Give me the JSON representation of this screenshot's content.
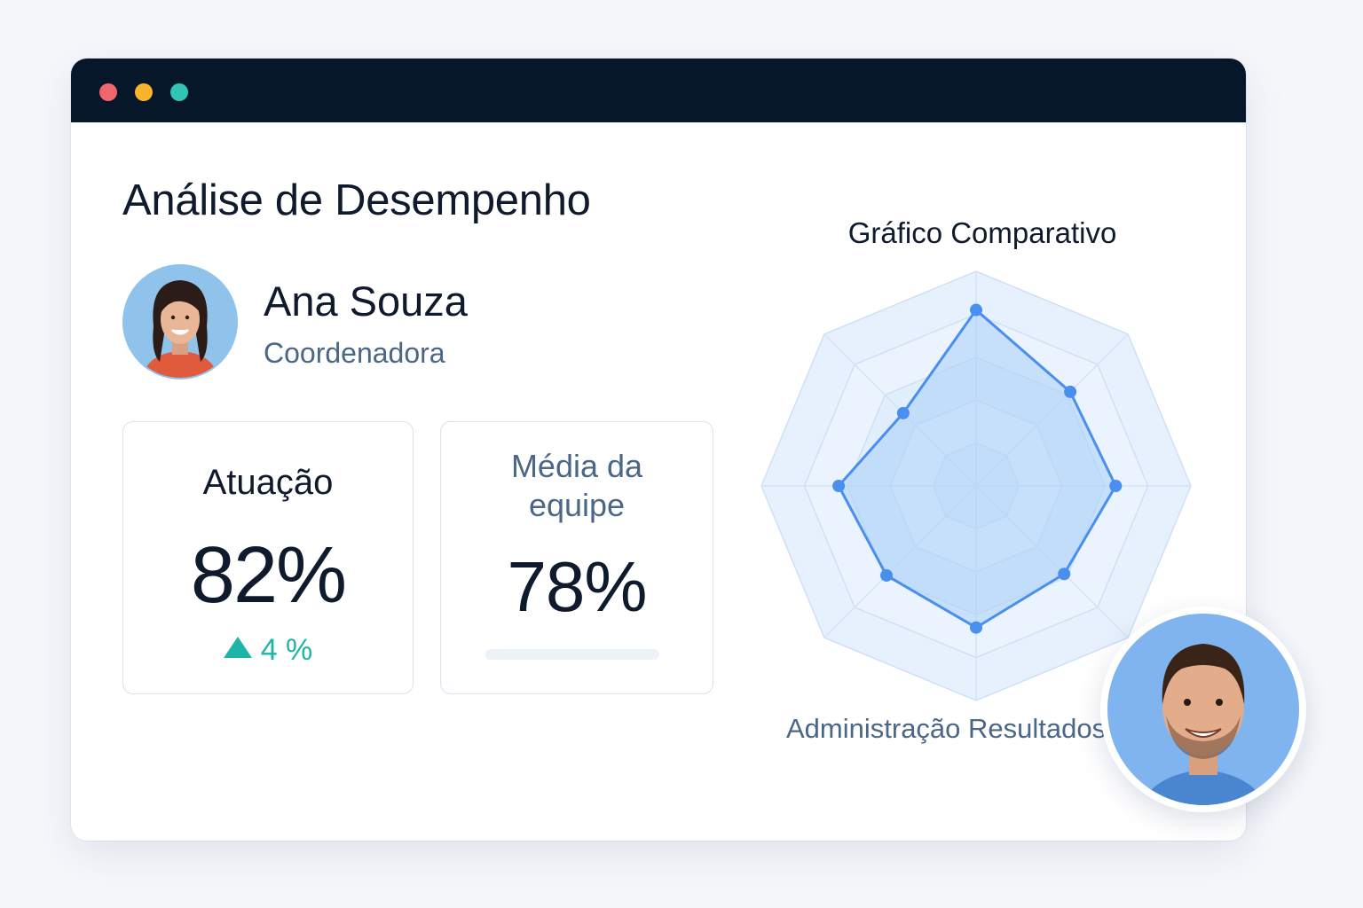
{
  "window": {
    "controls": [
      {
        "name": "close",
        "color": "#f0666a"
      },
      {
        "name": "minimize",
        "color": "#f7b52c"
      },
      {
        "name": "maximize",
        "color": "#2fc4b4"
      }
    ]
  },
  "page": {
    "title": "Análise de Desempenho"
  },
  "profile": {
    "name": "Ana Souza",
    "role": "Coordenadora"
  },
  "cards": {
    "atuacao": {
      "label": "Atuação",
      "value": "82%",
      "delta": "4 %",
      "delta_icon": "triangle-up-icon",
      "delta_color": "#1fb5a6"
    },
    "media": {
      "label": "Média da equipe",
      "value": "78%",
      "progress": 0
    }
  },
  "chart": {
    "title": "Gráfico Comparativo",
    "axis_label_visible": "Administração Resultados"
  },
  "chart_data": {
    "type": "radar",
    "title": "Gráfico Comparativo",
    "axes_count": 8,
    "rings": 5,
    "range": [
      0,
      1
    ],
    "series": [
      {
        "values": [
          0.82,
          0.62,
          0.65,
          0.58,
          0.66,
          0.59,
          0.64,
          0.48
        ],
        "color": "#4a8ff0"
      }
    ],
    "fill_color": "#a8cff8",
    "visible_axis_labels": [
      "Administração Resultados"
    ]
  },
  "colors": {
    "titlebar": "#06172a",
    "text": "#0f1a2c",
    "muted": "#4b6788",
    "accent": "#4a8ff0",
    "positive": "#1fb5a6"
  }
}
